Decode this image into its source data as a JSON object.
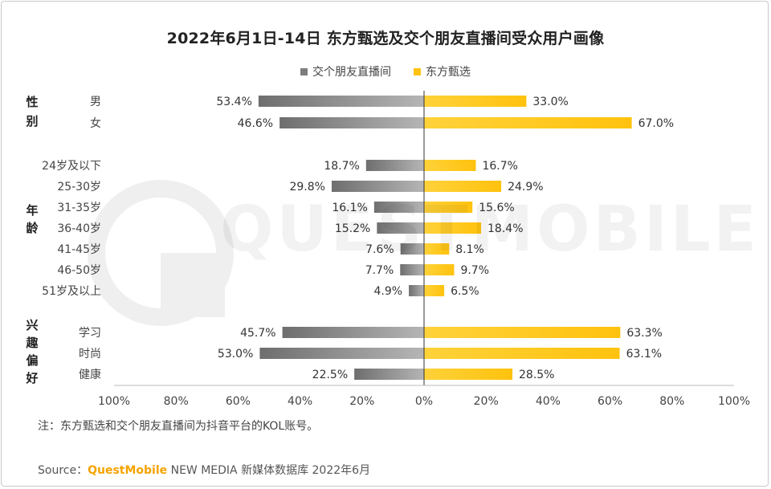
{
  "title": "2022年6月1日-14日 东方甄选及交个朋友直播间受众用户画像",
  "watermark_text": "QUESTMOBILE",
  "colors": {
    "series_gray": "#8f8f8f",
    "series_gray_dark": "#6e6e6e",
    "series_gold": "#ffc20e",
    "brand": "#f5a300"
  },
  "note": "注：东方甄选和交个朋友直播间为抖音平台的KOL账号。",
  "source": {
    "prefix": "Source：",
    "brand": "QuestMobile",
    "rest": " NEW MEDIA 新媒体数据库 2022年6月"
  },
  "chart_data": {
    "type": "bar",
    "orientation": "horizontal-diverging",
    "title": "2022年6月1日-14日 东方甄选及交个朋友直播间受众用户画像",
    "series": [
      {
        "name": "交个朋友直播间",
        "side": "left",
        "values": [
          53.4,
          46.6,
          18.7,
          29.8,
          16.1,
          15.2,
          7.6,
          7.7,
          4.9,
          45.7,
          53.0,
          22.5
        ]
      },
      {
        "name": "东方甄选",
        "side": "right",
        "values": [
          33.0,
          67.0,
          16.7,
          24.9,
          15.6,
          18.4,
          8.1,
          9.7,
          6.5,
          63.3,
          63.1,
          28.5
        ]
      }
    ],
    "groups": [
      {
        "label": "性别",
        "categories": [
          "男",
          "女"
        ]
      },
      {
        "label": "年龄",
        "categories": [
          "24岁及以下",
          "25-30岁",
          "31-35岁",
          "36-40岁",
          "41-45岁",
          "46-50岁",
          "51岁及以上"
        ]
      },
      {
        "label": "兴趣偏好",
        "categories": [
          "学习",
          "时尚",
          "健康"
        ]
      }
    ],
    "value_labels_left": [
      "53.4%",
      "46.6%",
      "18.7%",
      "29.8%",
      "16.1%",
      "15.2%",
      "7.6%",
      "7.7%",
      "4.9%",
      "45.7%",
      "53.0%",
      "22.5%"
    ],
    "value_labels_right": [
      "33.0%",
      "67.0%",
      "16.7%",
      "24.9%",
      "15.6%",
      "18.4%",
      "8.1%",
      "9.7%",
      "6.5%",
      "63.3%",
      "63.1%",
      "28.5%"
    ],
    "xticks": [
      "100%",
      "80%",
      "60%",
      "40%",
      "20%",
      "0%",
      "20%",
      "40%",
      "60%",
      "80%",
      "100%"
    ],
    "xlim": [
      -100,
      100
    ],
    "legend_position": "top-center"
  }
}
